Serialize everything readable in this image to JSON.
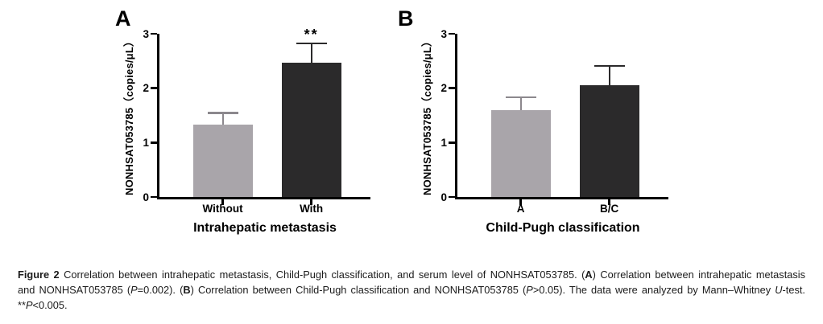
{
  "figure": {
    "caption": {
      "lines": [
        {
          "justify": true,
          "segments": [
            {
              "t": "Figure 2",
              "b": true
            },
            {
              "t": " Correlation between intrahepatic metastasis, Child-Pugh classification, and serum level of NONHSAT053785. ("
            },
            {
              "t": "A",
              "b": true
            },
            {
              "t": ") Correlation between intrahepatic metastasis"
            }
          ]
        },
        {
          "justify": true,
          "segments": [
            {
              "t": "and NONHSAT053785 ("
            },
            {
              "t": "P",
              "i": true
            },
            {
              "t": "=0.002). ("
            },
            {
              "t": "B",
              "b": true
            },
            {
              "t": ") Correlation between Child-Pugh classification and NONHSAT053785 ("
            },
            {
              "t": "P",
              "i": true
            },
            {
              "t": ">0.05). The data were analyzed by Mann–Whitney "
            },
            {
              "t": "U",
              "i": true
            },
            {
              "t": "-test."
            }
          ]
        },
        {
          "justify": false,
          "segments": [
            {
              "t": "**"
            },
            {
              "t": "P",
              "i": true
            },
            {
              "t": "<0.005."
            }
          ]
        }
      ]
    }
  },
  "chart_data": [
    {
      "type": "bar",
      "panel_letter": "A",
      "title": "Intrahepatic metastasis",
      "ylabel": "NONHSAT053785（copies/μL）",
      "ylim": [
        0,
        3
      ],
      "yticks": [
        0,
        1,
        2,
        3
      ],
      "categories": [
        "Without",
        "With"
      ],
      "values": [
        1.33,
        2.47
      ],
      "errors_upper": [
        0.23,
        0.37
      ],
      "significance": [
        "",
        "**"
      ],
      "bar_colors": [
        "#a9a5aa",
        "#2b2a2b"
      ],
      "error_colors": [
        "#8c888d",
        "#2b2a2b"
      ],
      "grid": false,
      "legend": "none"
    },
    {
      "type": "bar",
      "panel_letter": "B",
      "title": "Child-Pugh classification",
      "ylabel": "NONHSAT053785（copies/μL）",
      "ylim": [
        0,
        3
      ],
      "yticks": [
        0,
        1,
        2,
        3
      ],
      "categories": [
        "A",
        "B/C"
      ],
      "values": [
        1.59,
        2.06
      ],
      "errors_upper": [
        0.26,
        0.36
      ],
      "significance": [
        "",
        ""
      ],
      "bar_colors": [
        "#a9a5aa",
        "#2b2a2b"
      ],
      "error_colors": [
        "#8c888d",
        "#2b2a2b"
      ],
      "grid": false,
      "legend": "none"
    }
  ]
}
